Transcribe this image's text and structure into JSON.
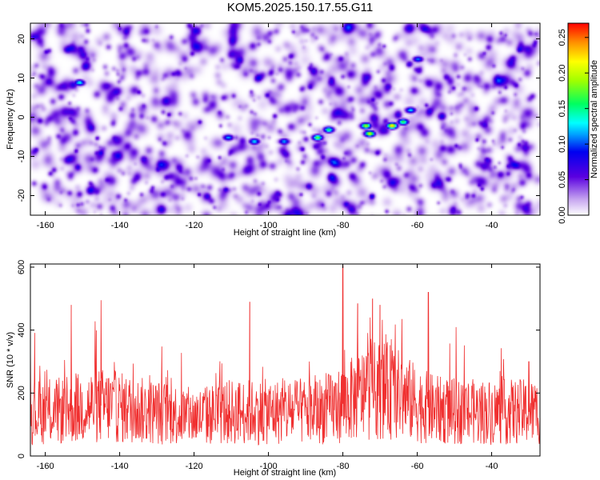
{
  "title": "KOM5.2025.150.17.55.G11",
  "chart_data": [
    {
      "type": "heatmap",
      "xlabel": "Height of straight line (km)",
      "ylabel": "Frequency (Hz)",
      "xlim": [
        -164,
        -27
      ],
      "ylim": [
        -25,
        24
      ],
      "x_ticks": [
        -160,
        -140,
        -120,
        -100,
        -80,
        -60,
        -40
      ],
      "y_ticks": [
        -20,
        -10,
        0,
        10,
        20
      ],
      "colorbar": {
        "label": "Normalized spectral amplitude",
        "range": [
          0,
          0.27
        ],
        "ticks": [
          "0.00",
          "0.05",
          "0.10",
          "0.15",
          "0.20",
          "0.25"
        ]
      },
      "features": [
        {
          "x": -111,
          "y": -5,
          "amp": 0.12
        },
        {
          "x": -104,
          "y": -6,
          "amp": 0.13
        },
        {
          "x": -96,
          "y": -6,
          "amp": 0.12
        },
        {
          "x": -87,
          "y": -5,
          "amp": 0.18
        },
        {
          "x": -84,
          "y": -3,
          "amp": 0.16
        },
        {
          "x": -74,
          "y": -2,
          "amp": 0.2
        },
        {
          "x": -73,
          "y": -4,
          "amp": 0.21
        },
        {
          "x": -67,
          "y": -2,
          "amp": 0.24
        },
        {
          "x": -64,
          "y": -1,
          "amp": 0.17
        },
        {
          "x": -62,
          "y": 2,
          "amp": 0.13
        },
        {
          "x": -151,
          "y": 9,
          "amp": 0.14
        },
        {
          "x": -60,
          "y": 15,
          "amp": 0.11
        }
      ]
    },
    {
      "type": "line",
      "xlabel": "Height of straight line (km)",
      "ylabel": "SNR (10 * v/v)",
      "xlim": [
        -164,
        -27
      ],
      "ylim": [
        0,
        610
      ],
      "x_ticks": [
        -160,
        -140,
        -120,
        -100,
        -80,
        -60,
        -40
      ],
      "y_ticks": [
        0,
        200,
        400,
        600
      ],
      "series": [
        {
          "color": "#f03030",
          "x_range": [
            -164,
            -27
          ],
          "baseline_mean": 140,
          "envelope_peaks": [
            {
              "x": -153,
              "y": 480
            },
            {
              "x": -145,
              "y": 495
            },
            {
              "x": -105,
              "y": 490
            },
            {
              "x": -80,
              "y": 605
            },
            {
              "x": -76,
              "y": 485
            },
            {
              "x": -72,
              "y": 500
            },
            {
              "x": -70,
              "y": 480
            },
            {
              "x": -57,
              "y": 520
            },
            {
              "x": -30,
              "y": 300
            }
          ]
        }
      ]
    }
  ]
}
